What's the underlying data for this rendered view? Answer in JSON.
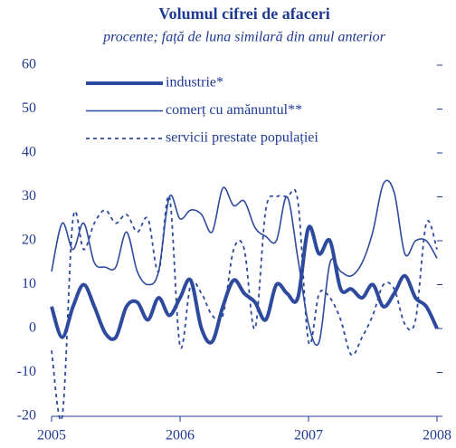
{
  "chart_data": {
    "type": "line",
    "title": "Volumul cifrei de afaceri",
    "subtitle": "procente; față de luna similară din anul anterior",
    "x": [
      2005,
      2005.083,
      2005.167,
      2005.25,
      2005.333,
      2005.417,
      2005.5,
      2005.583,
      2005.667,
      2005.75,
      2005.833,
      2005.917,
      2006,
      2006.083,
      2006.167,
      2006.25,
      2006.333,
      2006.417,
      2006.5,
      2006.583,
      2006.667,
      2006.75,
      2006.833,
      2006.917,
      2007,
      2007.083,
      2007.167,
      2007.25,
      2007.333,
      2007.417,
      2007.5,
      2007.583,
      2007.667,
      2007.75,
      2007.833,
      2007.917,
      2008
    ],
    "series": [
      {
        "name": "industrie*",
        "color": "#2e4a9e",
        "width": 4,
        "dash": "none",
        "values": [
          5,
          -2,
          5,
          10,
          5,
          -1,
          -2,
          5,
          6,
          2,
          7,
          3,
          7,
          11,
          0,
          -3,
          5,
          11,
          8,
          6,
          2,
          10,
          8,
          7,
          23,
          17,
          20,
          9,
          9,
          7,
          10,
          5,
          8,
          12,
          7,
          5,
          0
        ]
      },
      {
        "name": "comerț cu amănuntul**",
        "color": "#2e4a9e",
        "width": 1.6,
        "dash": "none",
        "values": [
          13,
          24,
          18,
          24,
          15,
          14,
          14,
          22,
          13,
          10,
          13,
          30,
          25,
          27,
          26,
          22,
          32,
          28,
          29,
          23,
          21,
          20,
          30,
          16,
          1,
          -3,
          15,
          13,
          12,
          15,
          22,
          33,
          31,
          17,
          20,
          20,
          16
        ]
      },
      {
        "name": "servicii prestate populației",
        "color": "#2e4a9e",
        "width": 1.8,
        "dash": "4 4",
        "values": [
          -5,
          -20,
          25,
          18,
          24,
          27,
          24,
          26,
          22,
          25,
          13,
          30,
          -4,
          10,
          8,
          3,
          3,
          18,
          18,
          0,
          27,
          30,
          30,
          29,
          -3,
          8,
          7,
          2,
          -6,
          -2,
          3,
          10,
          9,
          1,
          2,
          24,
          18
        ]
      }
    ],
    "xlim": [
      2005,
      2008
    ],
    "xticks": [
      2005,
      2006,
      2007,
      2008
    ],
    "ylim": [
      -20,
      60
    ],
    "yticks": [
      60,
      50,
      40,
      30,
      20,
      10,
      0,
      -10,
      -20
    ],
    "grid": false
  }
}
